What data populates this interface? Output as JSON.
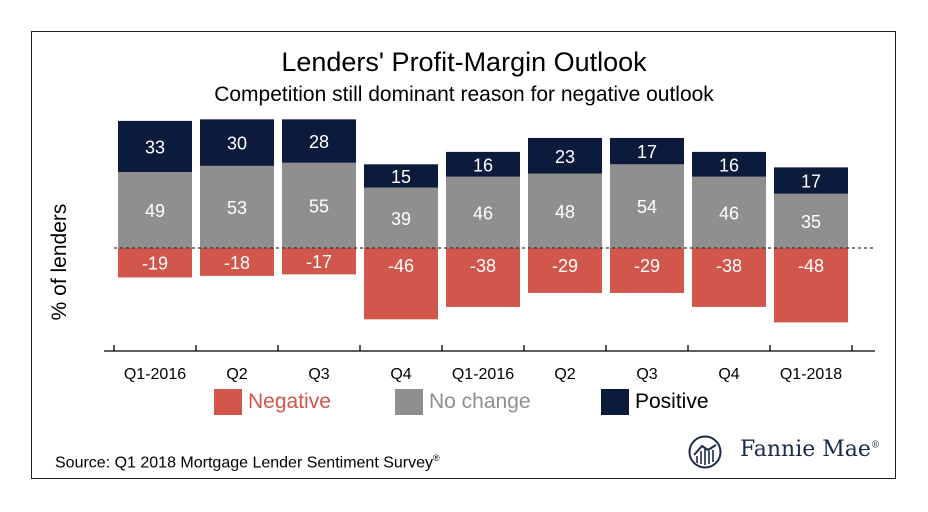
{
  "title": "Lenders' Profit-Margin Outlook",
  "subtitle": "Competition still dominant reason for negative outlook",
  "source": {
    "text": "Source: Q1 2018 Mortgage Lender Sentiment Survey",
    "mark": "®"
  },
  "logo": {
    "text": "Fannie Mae",
    "mark": "®",
    "icon": "fannie-mae-house-icon"
  },
  "colors": {
    "negative": "#d1564c",
    "no_change": "#8f8f8f",
    "positive": "#0c1a3b"
  },
  "chart_data": {
    "type": "bar",
    "stacked": true,
    "categories": [
      "Q1-2016",
      "Q2",
      "Q3",
      "Q4",
      "Q1-2016",
      "Q2",
      "Q3",
      "Q4",
      "Q1-2018"
    ],
    "series": [
      {
        "name": "Negative",
        "values": [
          -19,
          -18,
          -17,
          -46,
          -38,
          -29,
          -29,
          -38,
          -48
        ]
      },
      {
        "name": "No change",
        "values": [
          49,
          53,
          55,
          39,
          46,
          48,
          54,
          46,
          35
        ]
      },
      {
        "name": "Positive",
        "values": [
          33,
          30,
          28,
          15,
          16,
          23,
          17,
          16,
          17
        ]
      }
    ],
    "title": "Lenders' Profit-Margin Outlook",
    "subtitle": "Competition still dominant reason for negative outlook",
    "xlabel": "",
    "ylabel": "% of lenders",
    "ylim": [
      -50,
      85
    ],
    "zero_line": "dotted",
    "grid": false,
    "legend": {
      "position": "bottom",
      "entries": [
        "Negative",
        "No change",
        "Positive"
      ]
    }
  }
}
